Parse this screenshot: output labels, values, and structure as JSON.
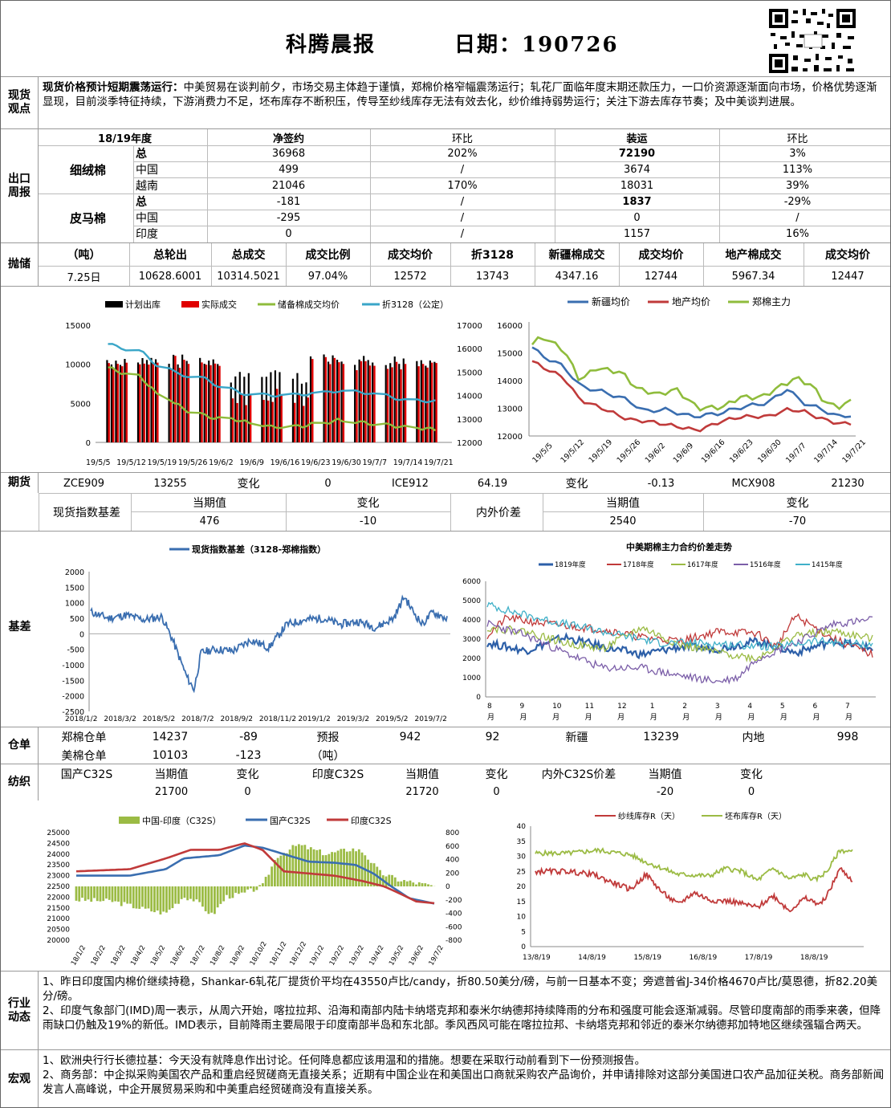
{
  "header": {
    "title": "科腾晨报",
    "date_label": "日期：190726"
  },
  "view": {
    "label": "现货观点",
    "headline": "现货价格预计短期震荡运行：",
    "text": "中美贸易在谈判前夕，市场交易主体趋于谨慎，郑棉价格窄幅震荡运行；轧花厂面临年度末期还款压力，一口价资源逐渐面向市场，价格优势逐渐显现，目前淡季特征持续，下游消费力不足，坯布库存不断积压，传导至纱线库存无法有效去化，纱价维持弱势运行；关注下游去库存节奏；及中美谈判进展。"
  },
  "export": {
    "label": "出口周报",
    "headers": [
      "18/19年度",
      "净签约",
      "环比",
      "装运",
      "环比"
    ],
    "groups": [
      {
        "name": "细绒棉",
        "rows": [
          [
            "总",
            "36968",
            "202%",
            "72190",
            "3%"
          ],
          [
            "中国",
            "499",
            "/",
            "3674",
            "113%"
          ],
          [
            "越南",
            "21046",
            "170%",
            "18031",
            "39%"
          ]
        ]
      },
      {
        "name": "皮马棉",
        "rows": [
          [
            "总",
            "-181",
            "/",
            "1837",
            "-29%"
          ],
          [
            "中国",
            "-295",
            "/",
            "0",
            "/"
          ],
          [
            "印度",
            "0",
            "/",
            "1157",
            "16%"
          ]
        ]
      }
    ]
  },
  "auction": {
    "label": "抛储",
    "headers": [
      "（吨）",
      "总轮出",
      "总成交",
      "成交比例",
      "成交均价",
      "折3128",
      "新疆棉成交",
      "成交均价",
      "地产棉成交",
      "成交均价"
    ],
    "values": [
      "7.25日",
      "10628.6001",
      "10314.5021",
      "97.04%",
      "12572",
      "13743",
      "4347.16",
      "12744",
      "5967.34",
      "12447"
    ]
  },
  "chart1": {
    "legend": [
      "计划出库",
      "实际成交",
      "储备棉成交均价",
      "折3128（公定）"
    ],
    "colors": {
      "plan": "#000000",
      "actual": "#e00000",
      "avg": "#8fbc3c",
      "conv": "#3aa6c8"
    },
    "ylim_left": [
      0,
      15000
    ],
    "ylim_right": [
      12000,
      17000
    ],
    "yticks_left": [
      "0",
      "5000",
      "10000",
      "15000"
    ],
    "yticks_right": [
      "12000",
      "13000",
      "14000",
      "15000",
      "16000",
      "17000"
    ],
    "xticks": [
      "19/5/5",
      "19/5/12",
      "19/5/19",
      "19/5/26",
      "19/6/2",
      "19/6/9",
      "19/6/16",
      "19/6/23",
      "19/6/30",
      "19/7/7",
      "19/7/14",
      "19/7/21"
    ]
  },
  "chart2": {
    "legend": [
      "新疆均价",
      "地产均价",
      "郑棉主力"
    ],
    "colors": {
      "xj": "#3a6eb0",
      "dc": "#c03a3a",
      "zm": "#8fbc3c"
    },
    "ylim": [
      12000,
      16000
    ],
    "yticks": [
      "12000",
      "13000",
      "14000",
      "15000",
      "16000"
    ],
    "xticks": [
      "19/5/5",
      "19/5/12",
      "19/5/19",
      "19/5/26",
      "19/6/2",
      "19/6/9",
      "19/6/16",
      "19/6/23",
      "19/6/30",
      "19/7/7",
      "19/7/14",
      "19/7/21"
    ]
  },
  "futures": {
    "label": "期货",
    "values": [
      "ZCE909",
      "13255",
      "变化",
      "0",
      "ICE912",
      "64.19",
      "变化",
      "-0.13",
      "MCX908",
      "21230"
    ]
  },
  "basis_tbl": {
    "left_title": "现货指数基差",
    "left_headers": [
      "当期值",
      "变化"
    ],
    "left_values": [
      "476",
      "-10"
    ],
    "right_title": "内外价差",
    "right_headers": [
      "当期值",
      "变化"
    ],
    "right_values": [
      "2540",
      "-70"
    ]
  },
  "basis": {
    "label": "基差"
  },
  "chart3": {
    "legend": "现货指数基差（3128-郑棉指数）",
    "ylim": [
      -2500,
      2000
    ],
    "yticks": [
      "-2500",
      "-2000",
      "-1500",
      "-1000",
      "-500",
      "0",
      "500",
      "1000",
      "1500",
      "2000"
    ],
    "xticks": [
      "2018/1/2",
      "2018/3/2",
      "2018/5/2",
      "2018/7/2",
      "2018/9/2",
      "2018/11/2",
      "2019/1/2",
      "2019/3/2",
      "2019/5/2",
      "2019/7/2"
    ]
  },
  "chart4": {
    "title": "中美期棉主力合约价差走势",
    "legend": [
      "1819年度",
      "1718年度",
      "1617年度",
      "1516年度",
      "1415年度"
    ],
    "colors": [
      "#2c5fa8",
      "#c03a3a",
      "#9bbb44",
      "#7b5ea8",
      "#3fb0c8"
    ],
    "ylim": [
      0,
      6000
    ],
    "yticks": [
      "0",
      "1000",
      "2000",
      "3000",
      "4000",
      "5000",
      "6000"
    ],
    "xticks": [
      [
        "8",
        "月"
      ],
      [
        "9",
        "月"
      ],
      [
        "10",
        "月"
      ],
      [
        "11",
        "月"
      ],
      [
        "12",
        "月"
      ],
      [
        "1",
        "月"
      ],
      [
        "2",
        "月"
      ],
      [
        "3",
        "月"
      ],
      [
        "4",
        "月"
      ],
      [
        "5",
        "月"
      ],
      [
        "6",
        "月"
      ],
      [
        "7",
        "月"
      ]
    ]
  },
  "warehouse": {
    "label": "仓单",
    "r1": [
      "郑棉仓单",
      "14237",
      "-89",
      "预报",
      "942",
      "92",
      "新疆",
      "13239",
      "内地",
      "998"
    ],
    "r2": [
      "美棉仓单",
      "10103",
      "-123",
      "（吨）"
    ]
  },
  "textile": {
    "label": "纺织",
    "h": [
      "国产C32S",
      "当期值",
      "变化",
      "印度C32S",
      "当期值",
      "变化",
      "内外C32S价差",
      "当期值",
      "变化"
    ],
    "v": [
      "21700",
      "0",
      "21720",
      "0",
      "-20",
      "0"
    ]
  },
  "chart5": {
    "legend": [
      "中国-印度（C32S）",
      "国产C32S",
      "印度C32S"
    ],
    "colors": {
      "diff": "#9bbb44",
      "cn": "#3a6eb0",
      "in": "#c03a3a"
    },
    "ylim_left": [
      20000,
      25000
    ],
    "ylim_right": [
      -800,
      800
    ],
    "yticks_left": [
      "20000",
      "20500",
      "21000",
      "21500",
      "22000",
      "22500",
      "23000",
      "23500",
      "24000",
      "24500",
      "25000"
    ],
    "yticks_right": [
      "-800",
      "-600",
      "-400",
      "-200",
      "0",
      "200",
      "400",
      "600",
      "800"
    ],
    "xticks": [
      "18/1/2",
      "18/2/2",
      "18/3/2",
      "18/4/2",
      "18/5/2",
      "18/6/2",
      "18/7/2",
      "18/8/2",
      "18/9/2",
      "18/10/2",
      "18/11/2",
      "18/12/2",
      "19/1/2",
      "19/2/2",
      "19/3/2",
      "19/4/2",
      "19/5/2",
      "19/6/2",
      "19/7/2"
    ]
  },
  "chart6": {
    "legend": [
      "纱线库存R（天）",
      "坯布库存R（天）"
    ],
    "colors": {
      "yarn": "#c03a3a",
      "cloth": "#9bbb44"
    },
    "ylim": [
      0,
      40
    ],
    "yticks": [
      "0",
      "5",
      "10",
      "15",
      "20",
      "25",
      "30",
      "35",
      "40"
    ],
    "xticks": [
      "13/8/19",
      "14/8/19",
      "15/8/19",
      "16/8/19",
      "17/8/19",
      "18/8/19"
    ]
  },
  "industry": {
    "label": "行业动态",
    "p1": "1、昨日印度国内棉价继续持稳，Shankar-6轧花厂提货价平均在43550卢比/candy，折80.50美分/磅，与前一日基本不变；旁遮普省J-34价格4670卢比/莫恩德，折82.20美分/磅。",
    "p2": "2、印度气象部门(IMD)周一表示，从周六开始，喀拉拉邦、沿海和南部内陆卡纳塔克邦和泰米尔纳德邦持续降雨的分布和强度可能会逐渐减弱。尽管印度南部的雨季来袭，但降雨缺口仍触及19%的新低。IMD表示，目前降雨主要局限于印度南部半岛和东北部。季风西风可能在喀拉拉邦、卡纳塔克邦和邻近的泰米尔纳德邦加特地区继续强辐合两天。"
  },
  "macro": {
    "label": "宏观",
    "p1": "1、欧洲央行行长德拉基：今天没有就降息作出讨论。任何降息都应该用温和的措施。想要在采取行动前看到下一份预测报告。",
    "p2": "2、商务部：中企拟采购美国农产品和重启经贸磋商无直接关系；近期有中国企业在和美国出口商就采购农产品询价，并申请排除对这部分美国进口农产品加征关税。商务部新闻发言人高峰说，中企开展贸易采购和中美重启经贸磋商没有直接关系。"
  }
}
